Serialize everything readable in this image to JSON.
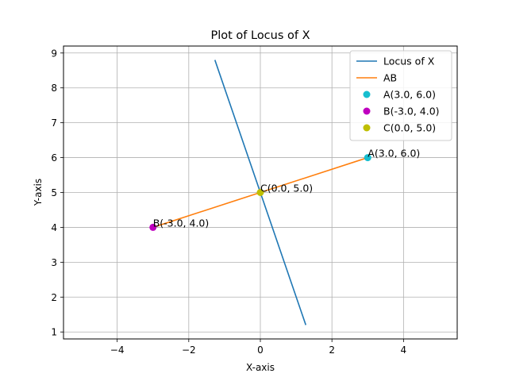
{
  "chart_data": {
    "type": "line",
    "title": "Plot of Locus of X",
    "xlabel": "X-axis",
    "ylabel": "Y-axis",
    "xlim": [
      -5.5,
      5.5
    ],
    "ylim": [
      0.8,
      9.2
    ],
    "xticks": [
      -4,
      -2,
      0,
      2,
      4
    ],
    "xtick_labels": [
      "−4",
      "−2",
      "0",
      "2",
      "4"
    ],
    "yticks": [
      1,
      2,
      3,
      4,
      5,
      6,
      7,
      8,
      9
    ],
    "ytick_labels": [
      "1",
      "2",
      "3",
      "4",
      "5",
      "6",
      "7",
      "8",
      "9"
    ],
    "grid": true,
    "legend_position": "top-right",
    "series": [
      {
        "name": "Locus of X",
        "kind": "line",
        "color": "#1f77b4",
        "x": [
          -1.27,
          1.27
        ],
        "y": [
          8.8,
          1.2
        ]
      },
      {
        "name": "AB",
        "kind": "line",
        "color": "#ff7f0e",
        "x": [
          -3.0,
          3.0
        ],
        "y": [
          4.0,
          6.0
        ]
      },
      {
        "name": "A(3.0, 6.0)",
        "kind": "point",
        "color": "#17becf",
        "x": [
          3.0
        ],
        "y": [
          6.0
        ]
      },
      {
        "name": "B(-3.0, 4.0)",
        "kind": "point",
        "color": "#bf00bf",
        "x": [
          -3.0
        ],
        "y": [
          4.0
        ]
      },
      {
        "name": "C(0.0, 5.0)",
        "kind": "point",
        "color": "#bfbf00",
        "x": [
          0.0
        ],
        "y": [
          5.0
        ]
      }
    ],
    "annotations": [
      {
        "text": "A(3.0, 6.0)",
        "x": 3.0,
        "y": 6.0
      },
      {
        "text": "B(-3.0, 4.0)",
        "x": -3.0,
        "y": 4.0
      },
      {
        "text": "C(0.0, 5.0)",
        "x": 0.0,
        "y": 5.0
      }
    ]
  }
}
